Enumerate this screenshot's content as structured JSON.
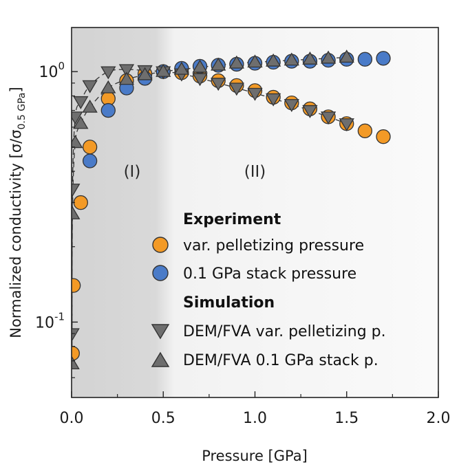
{
  "chart_data": {
    "type": "scatter",
    "title": "",
    "xlabel": "Pressure [GPa]",
    "ylabel": "Normalized conductivity [σ/σ",
    "ylabel_sub": "0.5 GPa",
    "ylabel_end": "]",
    "xlim": [
      0,
      2.0
    ],
    "ylim": [
      0.05,
      1.5
    ],
    "yscale": "log",
    "x_ticks": [
      {
        "value": 0.0,
        "label": "0.0"
      },
      {
        "value": 0.5,
        "label": "0.5"
      },
      {
        "value": 1.0,
        "label": "1.0"
      },
      {
        "value": 1.5,
        "label": "1.5"
      },
      {
        "value": 2.0,
        "label": "2.0"
      }
    ],
    "y_ticks": [
      {
        "value": 1.0,
        "base": "10",
        "exp": "0"
      },
      {
        "value": 0.1,
        "base": "10",
        "exp": "-1"
      }
    ],
    "regions": [
      {
        "label": "(I)",
        "x_start": 0,
        "x_end": 0.5,
        "label_x": 0.33,
        "label_y": 0.4
      },
      {
        "label": "(II)",
        "x_start": 0.5,
        "x_end": 2.0,
        "label_x": 1.0,
        "label_y": 0.4
      }
    ],
    "legend": {
      "experiment_heading": "Experiment",
      "simulation_heading": "Simulation"
    },
    "series": [
      {
        "name": "var. pelletizing pressure",
        "group": "experiment",
        "marker": "circle",
        "color": "#f39a26",
        "x": [
          0.005,
          0.01,
          0.05,
          0.1,
          0.2,
          0.3,
          0.4,
          0.5,
          0.6,
          0.7,
          0.8,
          0.9,
          1.0,
          1.1,
          1.2,
          1.3,
          1.4,
          1.5,
          1.6,
          1.7
        ],
        "y": [
          0.075,
          0.14,
          0.3,
          0.5,
          0.78,
          0.92,
          0.98,
          1.0,
          0.99,
          0.96,
          0.92,
          0.88,
          0.84,
          0.79,
          0.75,
          0.71,
          0.66,
          0.62,
          0.58,
          0.55
        ]
      },
      {
        "name": "0.1 GPa stack pressure",
        "group": "experiment",
        "marker": "circle",
        "color": "#4a7bc8",
        "x": [
          0.1,
          0.2,
          0.3,
          0.4,
          0.5,
          0.6,
          0.7,
          0.8,
          0.9,
          1.0,
          1.1,
          1.2,
          1.3,
          1.4,
          1.5,
          1.6,
          1.7
        ],
        "y": [
          0.44,
          0.7,
          0.86,
          0.94,
          1.0,
          1.03,
          1.05,
          1.06,
          1.07,
          1.08,
          1.09,
          1.1,
          1.1,
          1.11,
          1.12,
          1.12,
          1.13
        ]
      },
      {
        "name": "DEM/FVA var. pelletizing p.",
        "group": "simulation",
        "marker": "triangle-down",
        "color": "#6e6e6e",
        "x": [
          0.0025,
          0.005,
          0.02,
          0.05,
          0.1,
          0.2,
          0.3,
          0.4,
          0.5,
          0.6,
          0.7,
          0.8,
          0.9,
          1.0,
          1.1,
          1.2,
          1.3,
          1.4,
          1.5
        ],
        "y": [
          0.09,
          0.34,
          0.66,
          0.76,
          0.88,
          1.0,
          1.02,
          1.01,
          1.0,
          0.98,
          0.94,
          0.9,
          0.86,
          0.82,
          0.78,
          0.74,
          0.7,
          0.66,
          0.62
        ]
      },
      {
        "name": "DEM/FVA 0.1 GPa stack p.",
        "group": "simulation",
        "marker": "triangle-up",
        "color": "#6e6e6e",
        "x": [
          0.0025,
          0.005,
          0.02,
          0.05,
          0.1,
          0.2,
          0.3,
          0.4,
          0.5,
          0.6,
          0.7,
          0.8,
          0.9,
          1.0,
          1.1,
          1.2,
          1.3,
          1.4,
          1.5
        ],
        "y": [
          0.068,
          0.27,
          0.52,
          0.62,
          0.72,
          0.86,
          0.93,
          0.97,
          1.0,
          1.02,
          1.04,
          1.06,
          1.08,
          1.09,
          1.1,
          1.11,
          1.12,
          1.13,
          1.14
        ]
      }
    ]
  }
}
